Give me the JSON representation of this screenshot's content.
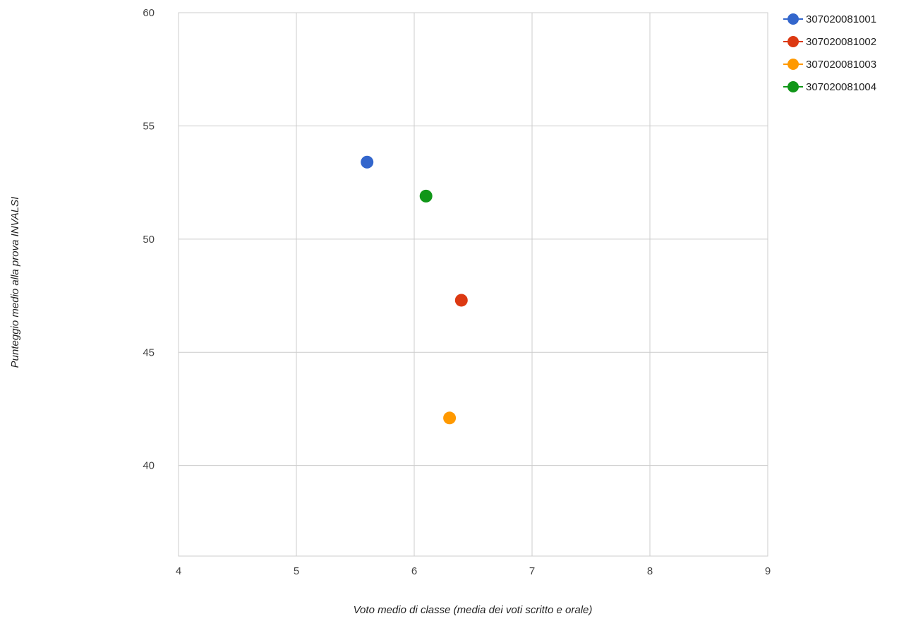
{
  "chart_data": {
    "type": "scatter",
    "title": "",
    "xlabel": "Voto medio di classe (media dei voti scritto e orale)",
    "ylabel": "Punteggio medio alla prova INVALSI",
    "xlim": [
      4,
      9
    ],
    "ylim": [
      36,
      60
    ],
    "xticks": [
      4,
      5,
      6,
      7,
      8,
      9
    ],
    "yticks": [
      40,
      45,
      50,
      55,
      60
    ],
    "grid": true,
    "legend_position": "right",
    "series": [
      {
        "name": "307020081001",
        "color": "#3366cc",
        "points": [
          {
            "x": 5.6,
            "y": 53.4
          }
        ]
      },
      {
        "name": "307020081002",
        "color": "#dc3912",
        "points": [
          {
            "x": 6.4,
            "y": 47.3
          }
        ]
      },
      {
        "name": "307020081003",
        "color": "#ff9900",
        "points": [
          {
            "x": 6.3,
            "y": 42.1
          }
        ]
      },
      {
        "name": "307020081004",
        "color": "#109618",
        "points": [
          {
            "x": 6.1,
            "y": 51.9
          }
        ]
      }
    ]
  }
}
